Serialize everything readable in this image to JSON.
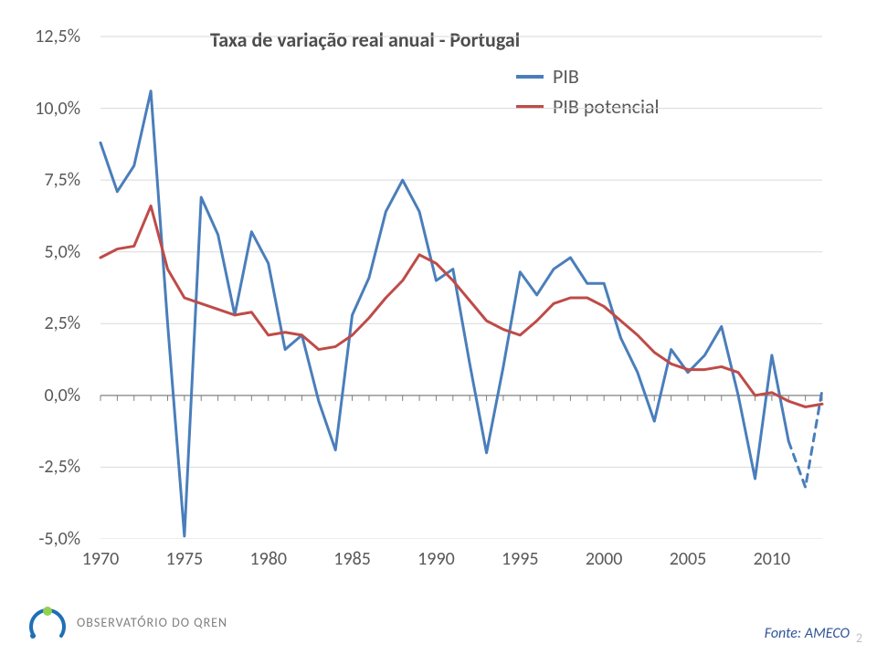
{
  "chart": {
    "type": "line",
    "title": "Taxa de variação real anual - Portugal",
    "title_fontsize": 22,
    "title_fontweight": "bold",
    "background_color": "#ffffff",
    "axis_color": "#808080",
    "tick_color": "#808080",
    "label_color": "#595959",
    "label_fontsize": 20,
    "xlim_year": [
      1970,
      2013
    ],
    "ylim_pct": [
      -5.0,
      12.5
    ],
    "grid_on": false,
    "y_ticks": [
      "12,5%",
      "10,0%",
      "7,5%",
      "5,0%",
      "2,5%",
      "0,0%",
      "-2,5%",
      "-5,0%"
    ],
    "y_tick_values": [
      12.5,
      10.0,
      7.5,
      5.0,
      2.5,
      0.0,
      -2.5,
      -5.0
    ],
    "x_ticks": [
      "1970",
      "1975",
      "1980",
      "1985",
      "1990",
      "1995",
      "2000",
      "2005",
      "2010"
    ],
    "x_tick_values": [
      1970,
      1975,
      1980,
      1985,
      1990,
      1995,
      2000,
      2005,
      2010
    ],
    "x_minor_every_year": true,
    "legend": {
      "position": "upper-center-right",
      "items": [
        {
          "label": "PIB",
          "color": "#4a7ebb",
          "width": 3.0
        },
        {
          "label": "PIB potencial",
          "color": "#be4b48",
          "width": 3.0
        }
      ]
    },
    "series": [
      {
        "name": "PIB",
        "color": "#4a7ebb",
        "width": 3.0,
        "years": [
          1970,
          1971,
          1972,
          1973,
          1974,
          1975,
          1976,
          1977,
          1978,
          1979,
          1980,
          1981,
          1982,
          1983,
          1984,
          1985,
          1986,
          1987,
          1988,
          1989,
          1990,
          1991,
          1992,
          1993,
          1994,
          1995,
          1996,
          1997,
          1998,
          1999,
          2000,
          2001,
          2002,
          2003,
          2004,
          2005,
          2006,
          2007,
          2008,
          2009,
          2010,
          2011,
          2012,
          2013
        ],
        "values": [
          8.8,
          7.1,
          8.0,
          10.6,
          2.5,
          -4.9,
          6.9,
          5.6,
          2.8,
          5.7,
          4.6,
          1.6,
          2.1,
          -0.2,
          -1.9,
          2.8,
          4.1,
          6.4,
          7.5,
          6.4,
          4.0,
          4.4,
          1.1,
          -2.0,
          1.0,
          4.3,
          3.5,
          4.4,
          4.8,
          3.9,
          3.9,
          2.0,
          0.8,
          -0.9,
          1.6,
          0.8,
          1.4,
          2.4,
          0.0,
          -2.9,
          1.4,
          -1.6,
          -3.2,
          0.2
        ],
        "dash_from_index": 41
      },
      {
        "name": "PIB potencial",
        "color": "#be4b48",
        "width": 3.0,
        "years": [
          1970,
          1971,
          1972,
          1973,
          1974,
          1975,
          1976,
          1977,
          1978,
          1979,
          1980,
          1981,
          1982,
          1983,
          1984,
          1985,
          1986,
          1987,
          1988,
          1989,
          1990,
          1991,
          1992,
          1993,
          1994,
          1995,
          1996,
          1997,
          1998,
          1999,
          2000,
          2001,
          2002,
          2003,
          2004,
          2005,
          2006,
          2007,
          2008,
          2009,
          2010,
          2011,
          2012,
          2013
        ],
        "values": [
          4.8,
          5.1,
          5.2,
          6.6,
          4.4,
          3.4,
          3.2,
          3.0,
          2.8,
          2.9,
          2.1,
          2.2,
          2.1,
          1.6,
          1.7,
          2.1,
          2.7,
          3.4,
          4.0,
          4.9,
          4.6,
          4.0,
          3.3,
          2.6,
          2.3,
          2.1,
          2.6,
          3.2,
          3.4,
          3.4,
          3.1,
          2.6,
          2.1,
          1.5,
          1.1,
          0.9,
          0.9,
          1.0,
          0.8,
          0.0,
          0.1,
          -0.2,
          -0.4,
          -0.3
        ]
      }
    ]
  },
  "footer": {
    "logo_text": "OBSERVATÓRIO DO QREN",
    "source": "Fonte: AMECO",
    "page_number": "2",
    "logo_colors": {
      "top": "#92d050",
      "stroke": "#1f6fb5"
    }
  }
}
